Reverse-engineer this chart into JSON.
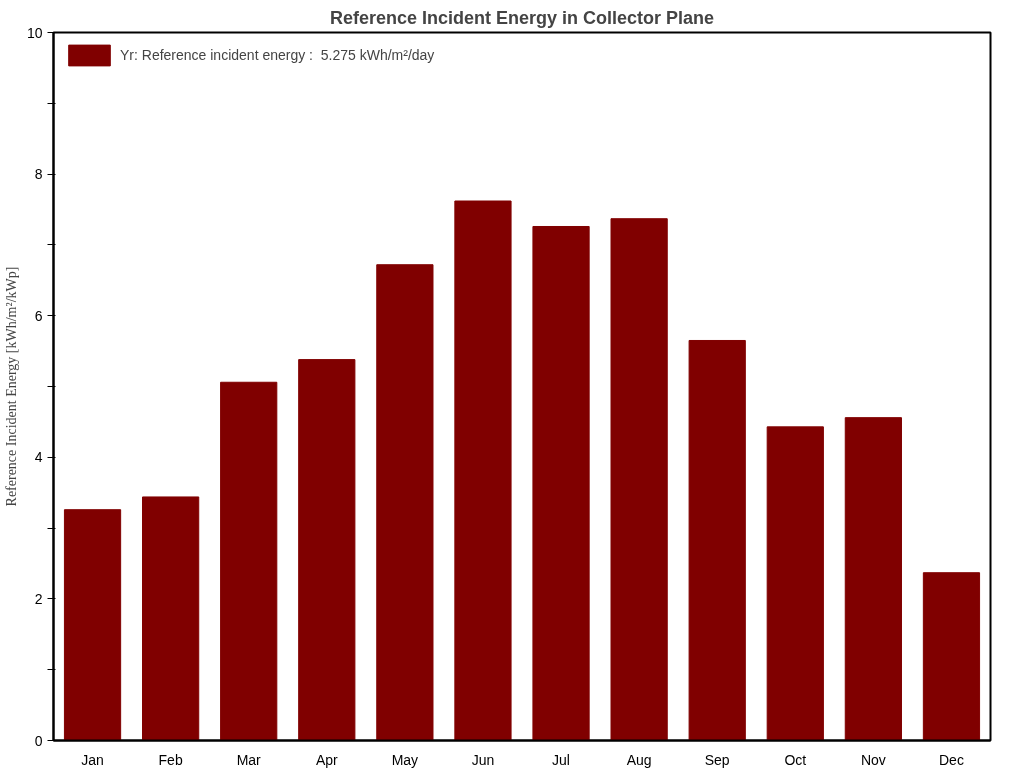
{
  "chart_data": {
    "type": "bar",
    "title": "Reference Incident Energy in Collector Plane",
    "ylabel": "Reference Incident Energy [kWh/m²/kWp]",
    "categories": [
      "Jan",
      "Feb",
      "Mar",
      "Apr",
      "May",
      "Jun",
      "Jul",
      "Aug",
      "Sep",
      "Oct",
      "Nov",
      "Dec"
    ],
    "series": [
      {
        "name": "Yr: Reference incident energy :  5.275 kWh/m²/day",
        "color": "#800000",
        "values": [
          3.26,
          3.44,
          5.06,
          5.38,
          6.72,
          7.62,
          7.26,
          7.37,
          5.65,
          4.43,
          4.56,
          2.37
        ]
      }
    ],
    "ylim": [
      0,
      10
    ],
    "yticks": [
      0,
      {
        "value": 1,
        "label": null
      },
      2,
      {
        "value": 3,
        "label": null
      },
      4,
      {
        "value": 5,
        "label": null
      },
      6,
      {
        "value": 7,
        "label": null
      },
      8,
      {
        "value": 9,
        "label": null
      },
      10
    ],
    "grid": false,
    "legend": "top left"
  }
}
